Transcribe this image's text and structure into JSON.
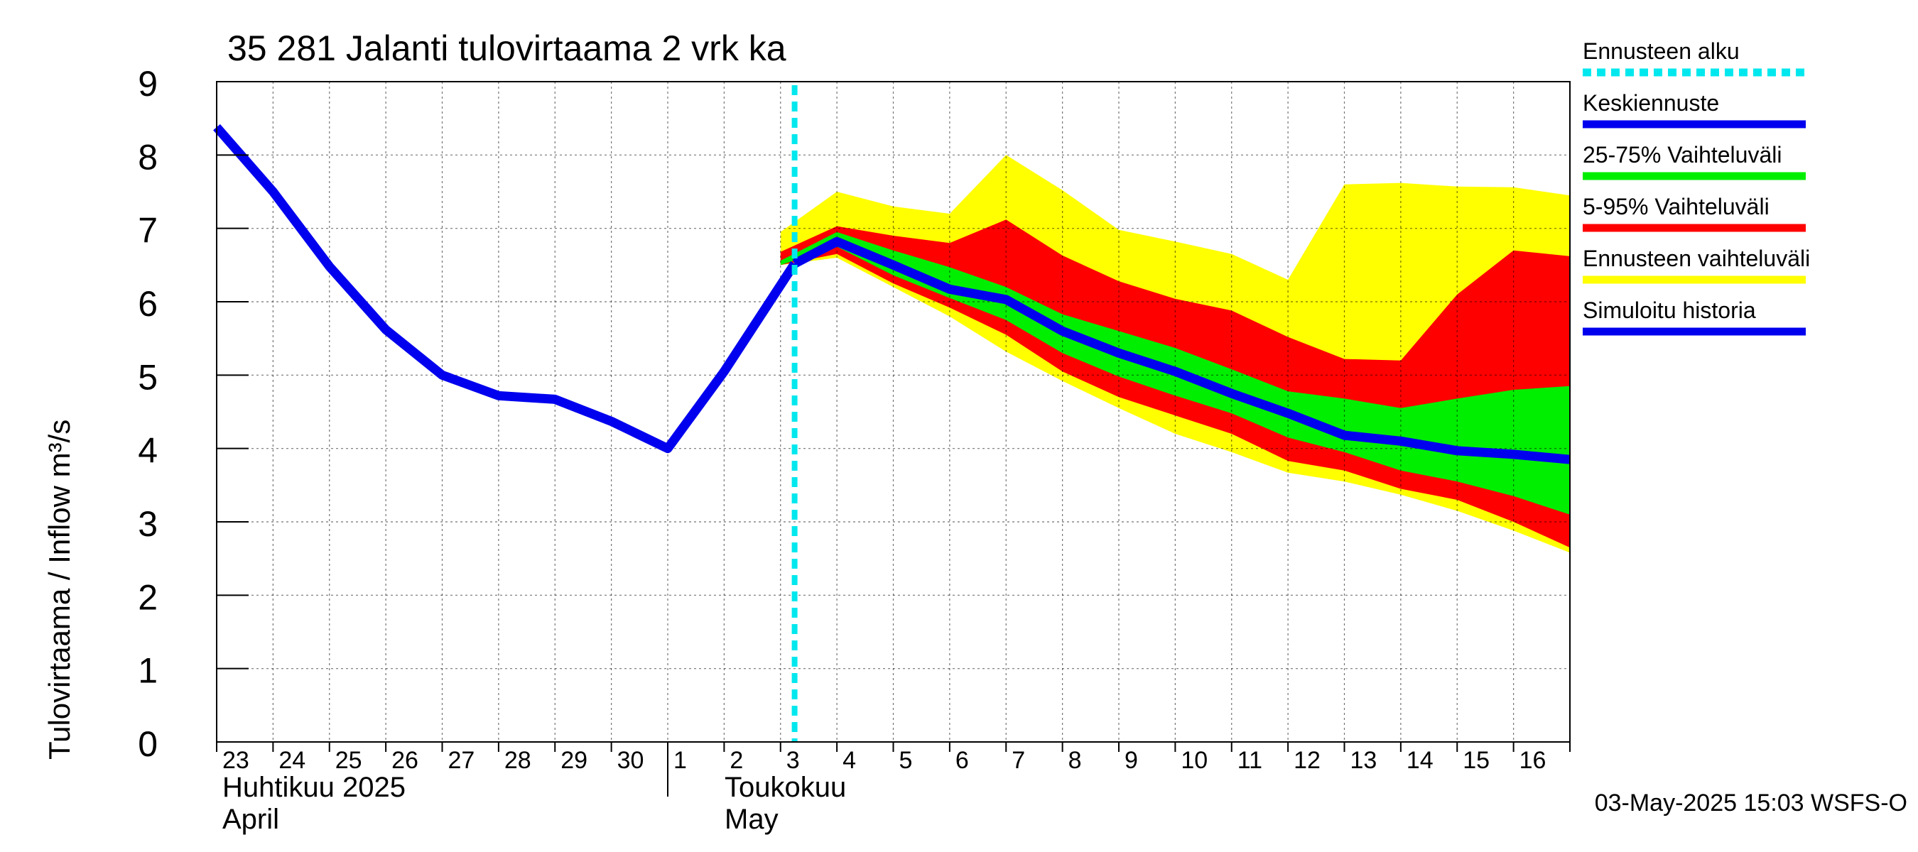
{
  "chart_data": {
    "type": "area",
    "title": "35 281 Jalanti tulovirtaama 2 vrk ka",
    "ylabel": "Tulovirtaama / Inflow    m³/s",
    "ylim": [
      0,
      9
    ],
    "y_ticks": [
      "0",
      "1",
      "2",
      "3",
      "4",
      "5",
      "6",
      "7",
      "8",
      "9"
    ],
    "x_tick_labels": [
      "23",
      "24",
      "25",
      "26",
      "27",
      "28",
      "29",
      "30",
      "1",
      "2",
      "3",
      "4",
      "5",
      "6",
      "7",
      "8",
      "9",
      "10",
      "11",
      "12",
      "13",
      "14",
      "15",
      "16"
    ],
    "month_labels": [
      {
        "line1": "Huhtikuu  2025",
        "line2": "April"
      },
      {
        "line1": "Toukokuu",
        "line2": "May"
      }
    ],
    "x_range": [
      "2025-04-23",
      "2025-05-17"
    ],
    "forecast_start": "2025-05-03T06:00",
    "grid": true,
    "legend_position": "right",
    "timestamp": "03-May-2025 15:03 WSFS-O",
    "colors": {
      "forecast_start": "#00e8ee",
      "mean": "#0000ee",
      "band_25_75": "#00ee00",
      "band_5_95": "#ff0000",
      "band_full": "#ffff00",
      "history": "#0000ee"
    },
    "legend": [
      {
        "label": "Ennusteen alku",
        "style": "dashed",
        "color": "#00e8ee"
      },
      {
        "label": "Keskiennuste",
        "style": "solid",
        "color": "#0000ee"
      },
      {
        "label": "25-75% Vaihteluväli",
        "style": "solid",
        "color": "#00ee00"
      },
      {
        "label": "5-95% Vaihteluväli",
        "style": "solid",
        "color": "#ff0000"
      },
      {
        "label": "Ennusteen vaihteluväli",
        "style": "solid",
        "color": "#ffff00"
      },
      {
        "label": "Simuloitu historia",
        "style": "solid",
        "color": "#0000ee"
      }
    ],
    "series": [
      {
        "name": "Simuloitu historia",
        "x": [
          "2025-04-23",
          "2025-04-24",
          "2025-04-25",
          "2025-04-26",
          "2025-04-27",
          "2025-04-28",
          "2025-04-29",
          "2025-04-30",
          "2025-05-01",
          "2025-05-02",
          "2025-05-03T06:00"
        ],
        "values": [
          8.38,
          7.5,
          6.48,
          5.62,
          5.0,
          4.72,
          4.67,
          4.37,
          4.0,
          5.05,
          6.52
        ]
      },
      {
        "name": "Keskiennuste",
        "x": [
          "2025-05-03T06:00",
          "2025-05-04",
          "2025-05-05",
          "2025-05-06",
          "2025-05-07",
          "2025-05-08",
          "2025-05-09",
          "2025-05-10",
          "2025-05-11",
          "2025-05-12",
          "2025-05-13",
          "2025-05-14",
          "2025-05-15",
          "2025-05-16",
          "2025-05-17"
        ],
        "values": [
          6.52,
          6.82,
          6.5,
          6.17,
          6.03,
          5.6,
          5.3,
          5.05,
          4.75,
          4.48,
          4.18,
          4.1,
          3.97,
          3.92,
          3.85
        ]
      }
    ],
    "bands": [
      {
        "name": "Ennusteen vaihteluväli",
        "x": [
          "2025-05-03",
          "2025-05-04",
          "2025-05-05",
          "2025-05-06",
          "2025-05-07",
          "2025-05-08",
          "2025-05-09",
          "2025-05-10",
          "2025-05-11",
          "2025-05-12",
          "2025-05-13",
          "2025-05-14",
          "2025-05-15",
          "2025-05-16",
          "2025-05-17"
        ],
        "upper": [
          6.95,
          7.5,
          7.3,
          7.2,
          8.0,
          7.52,
          6.98,
          6.82,
          6.65,
          6.3,
          7.6,
          7.62,
          7.57,
          7.56,
          7.45
        ],
        "lower": [
          6.5,
          6.6,
          6.2,
          5.8,
          5.32,
          4.92,
          4.55,
          4.2,
          3.95,
          3.67,
          3.55,
          3.37,
          3.15,
          2.88,
          2.58
        ]
      },
      {
        "name": "5-95% Vaihteluväli",
        "x": [
          "2025-05-03",
          "2025-05-04",
          "2025-05-05",
          "2025-05-06",
          "2025-05-07",
          "2025-05-08",
          "2025-05-09",
          "2025-05-10",
          "2025-05-11",
          "2025-05-12",
          "2025-05-13",
          "2025-05-14",
          "2025-05-15",
          "2025-05-16",
          "2025-05-17"
        ],
        "upper": [
          6.68,
          7.03,
          6.9,
          6.8,
          7.12,
          6.63,
          6.28,
          6.04,
          5.88,
          5.52,
          5.22,
          5.2,
          6.1,
          6.7,
          6.62
        ],
        "lower": [
          6.5,
          6.65,
          6.25,
          5.92,
          5.55,
          5.05,
          4.7,
          4.45,
          4.2,
          3.83,
          3.7,
          3.45,
          3.3,
          3.0,
          2.65
        ]
      },
      {
        "name": "25-75% Vaihteluväli",
        "x": [
          "2025-05-03",
          "2025-05-04",
          "2025-05-05",
          "2025-05-06",
          "2025-05-07",
          "2025-05-08",
          "2025-05-09",
          "2025-05-10",
          "2025-05-11",
          "2025-05-12",
          "2025-05-13",
          "2025-05-14",
          "2025-05-15",
          "2025-05-16",
          "2025-05-17"
        ],
        "upper": [
          6.56,
          6.95,
          6.7,
          6.47,
          6.2,
          5.83,
          5.6,
          5.37,
          5.08,
          4.78,
          4.68,
          4.55,
          4.68,
          4.8,
          4.85
        ],
        "lower": [
          6.5,
          6.75,
          6.36,
          6.05,
          5.75,
          5.3,
          4.98,
          4.72,
          4.48,
          4.15,
          3.95,
          3.7,
          3.55,
          3.35,
          3.1
        ]
      }
    ]
  }
}
